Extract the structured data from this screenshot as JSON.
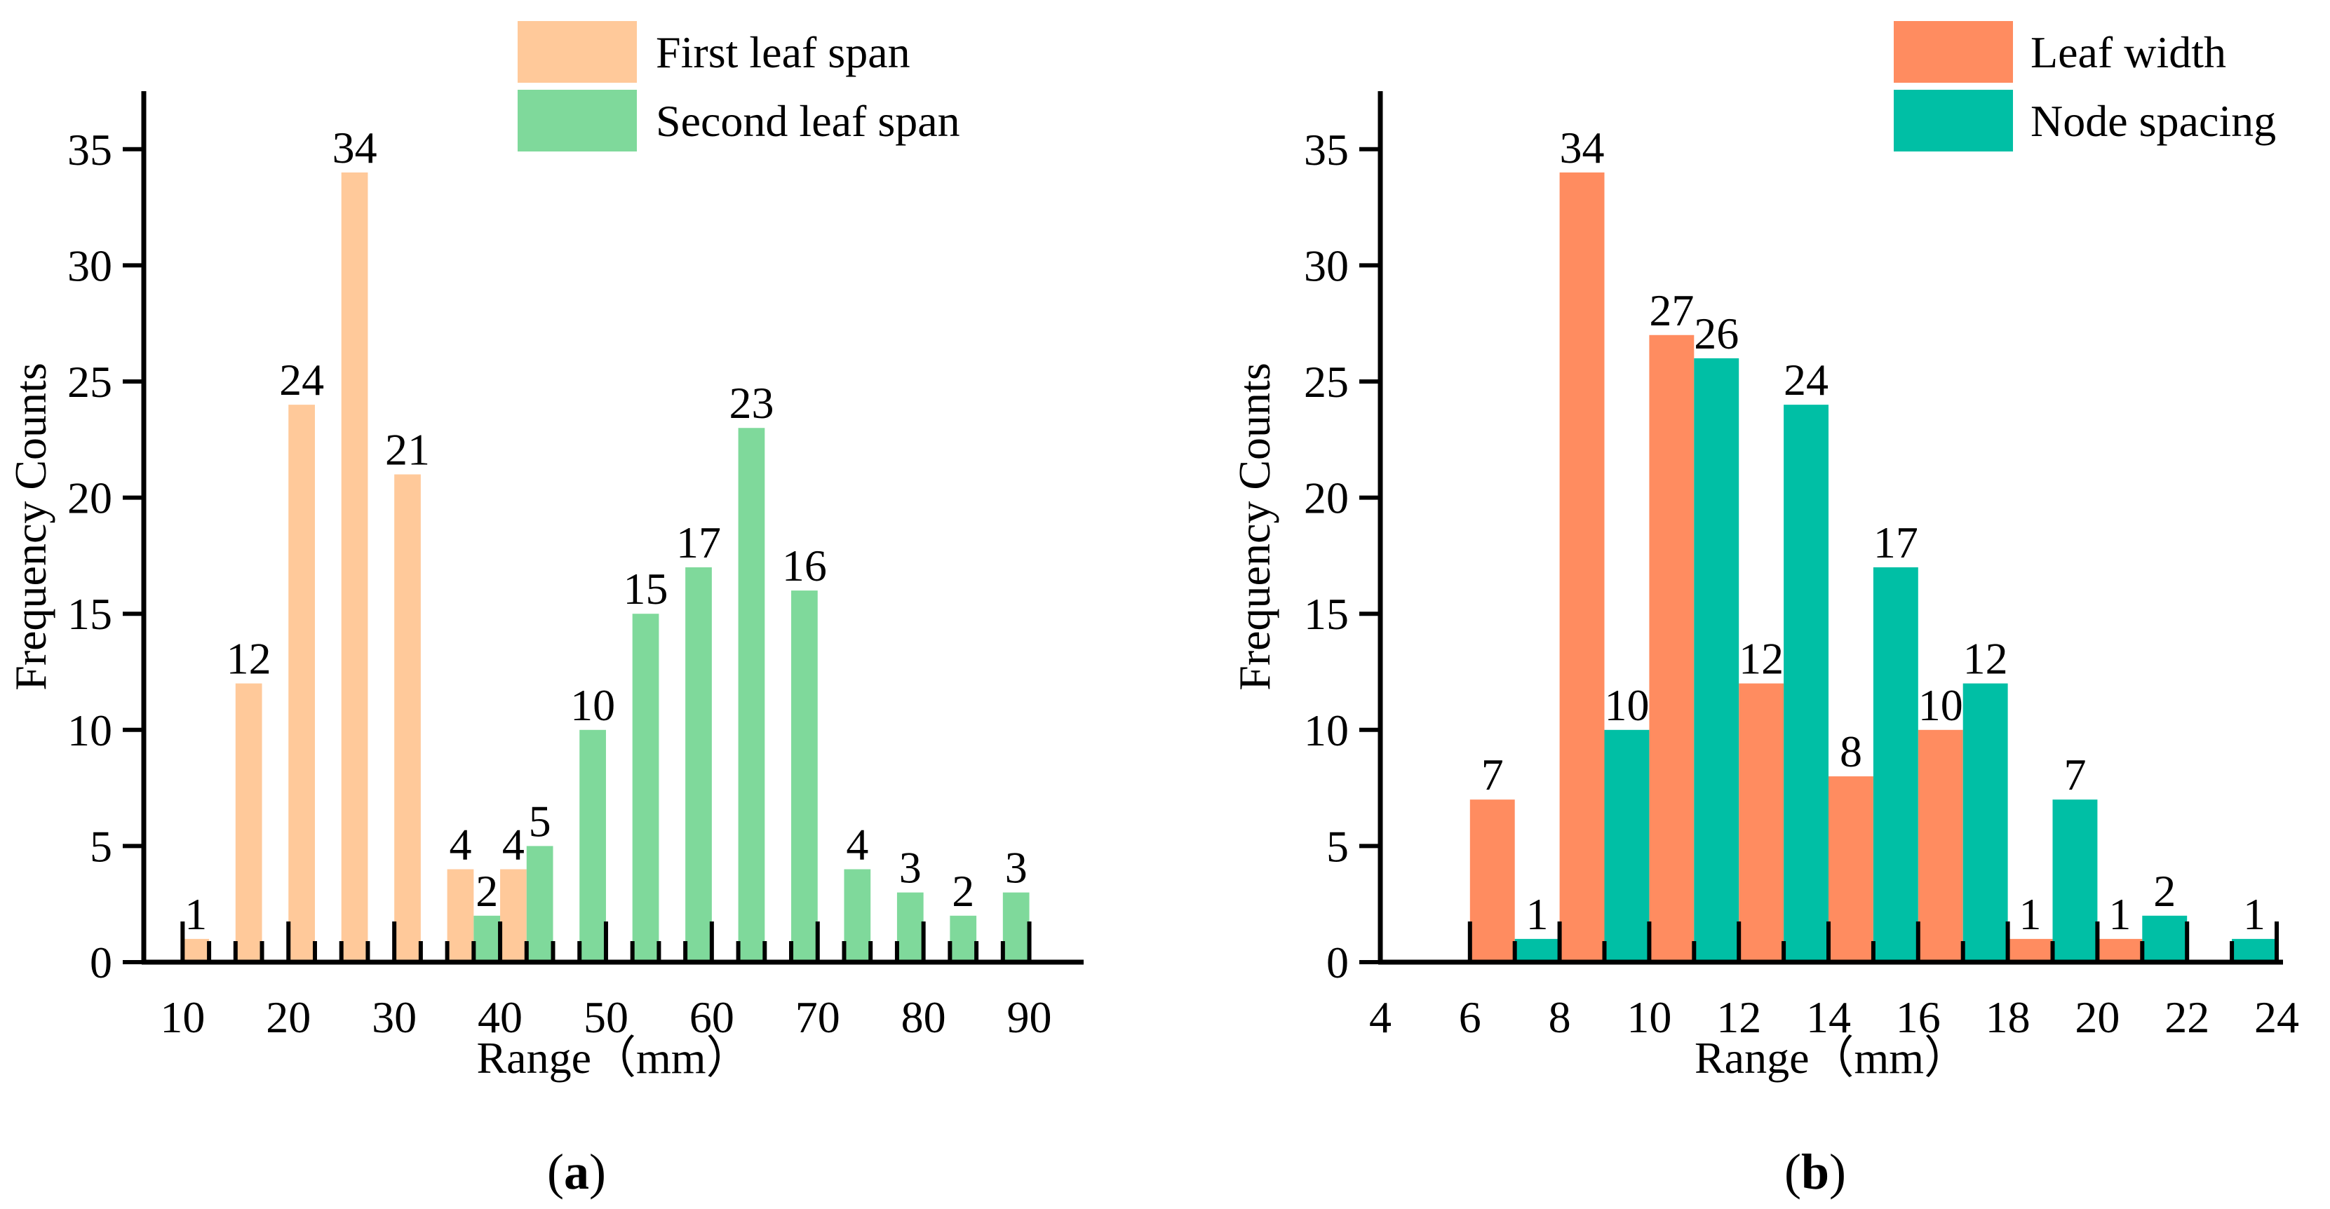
{
  "chart_data": [
    {
      "id": "a",
      "caption_letter": "a",
      "type": "bar",
      "xlabel": "Range（mm）",
      "ylabel": "Frequency Counts",
      "xlim": [
        6,
        92
      ],
      "ylim": [
        0,
        37.5
      ],
      "xticks": [
        10,
        20,
        30,
        40,
        50,
        60,
        70,
        80,
        90
      ],
      "yticks": [
        0,
        5,
        10,
        15,
        20,
        25,
        30,
        35
      ],
      "bar_width": 2.5,
      "legend_position": "top-right",
      "series": [
        {
          "name": "First leaf span",
          "color": "#FFC99A",
          "x": [
            11.25,
            16.25,
            21.25,
            26.25,
            31.25,
            36.25,
            41.25
          ],
          "values": [
            1,
            12,
            24,
            34,
            21,
            4,
            4
          ]
        },
        {
          "name": "Second leaf span",
          "color": "#7FD99B",
          "x": [
            38.75,
            43.75,
            48.75,
            53.75,
            58.75,
            63.75,
            68.75,
            73.75,
            78.75,
            83.75,
            88.75
          ],
          "values": [
            2,
            5,
            10,
            15,
            17,
            23,
            16,
            4,
            3,
            2,
            3
          ]
        }
      ]
    },
    {
      "id": "b",
      "caption_letter": "b",
      "type": "bar",
      "xlabel": "Range（mm）",
      "ylabel": "Frequency Counts",
      "xlim": [
        4,
        24.2
      ],
      "ylim": [
        0,
        37.5
      ],
      "xticks": [
        4,
        6,
        8,
        10,
        12,
        14,
        16,
        18,
        20,
        22,
        24
      ],
      "yticks": [
        0,
        5,
        10,
        15,
        20,
        25,
        30,
        35
      ],
      "bar_width": 1,
      "legend_position": "top-right",
      "series": [
        {
          "name": "Leaf width",
          "color": "#FF8C60",
          "x": [
            6.5,
            8.5,
            10.5,
            12.5,
            14.5,
            16.5,
            18.5,
            20.5
          ],
          "values": [
            7,
            34,
            27,
            12,
            8,
            10,
            1,
            1
          ]
        },
        {
          "name": "Node spacing",
          "color": "#00BFA5",
          "x": [
            7.5,
            9.5,
            11.5,
            13.5,
            15.5,
            17.5,
            19.5,
            21.5,
            23.5
          ],
          "values": [
            1,
            10,
            26,
            24,
            17,
            12,
            7,
            2,
            1
          ]
        }
      ]
    }
  ]
}
